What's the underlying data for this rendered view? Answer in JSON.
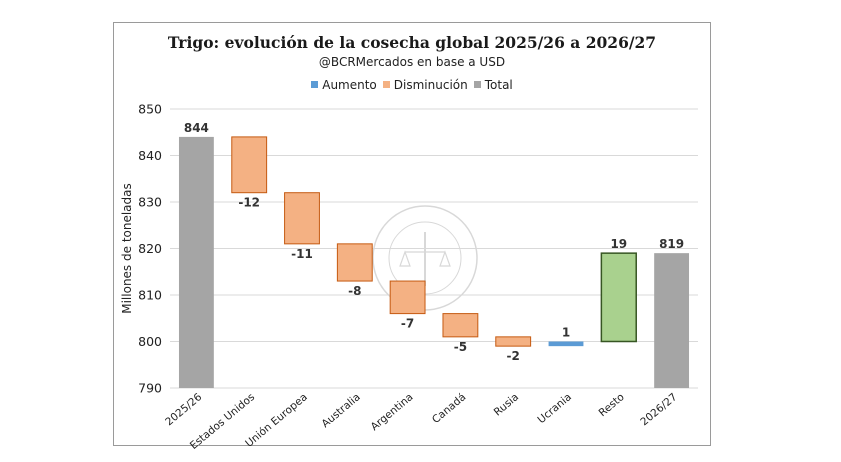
{
  "chart_data": {
    "type": "bar",
    "subtype": "waterfall",
    "title": "Trigo: evolución de la cosecha global 2025/26 a 2026/27",
    "subtitle": "@BCRMercados en base a USD",
    "ylabel": "Millones de toneladas",
    "ylim": [
      790,
      850
    ],
    "yticks": [
      790,
      800,
      810,
      820,
      830,
      840,
      850
    ],
    "legend": {
      "position": "top",
      "entries": [
        {
          "name": "Aumento",
          "color": "#5b9bd5"
        },
        {
          "name": "Disminución",
          "color": "#f4b183"
        },
        {
          "name": "Total",
          "color": "#a5a5a5"
        }
      ]
    },
    "categories": [
      "2025/26",
      "Estados Unidos",
      "Unión Europea",
      "Australia",
      "Argentina",
      "Canadá",
      "Rusia",
      "Ucrania",
      "Resto",
      "2026/27"
    ],
    "bars": [
      {
        "category": "2025/26",
        "kind": "total",
        "start": 790,
        "end": 844,
        "label": "844"
      },
      {
        "category": "Estados Unidos",
        "kind": "decrease",
        "start": 844,
        "end": 832,
        "label": "-12"
      },
      {
        "category": "Unión Europea",
        "kind": "decrease",
        "start": 832,
        "end": 821,
        "label": "-11"
      },
      {
        "category": "Australia",
        "kind": "decrease",
        "start": 821,
        "end": 813,
        "label": "-8"
      },
      {
        "category": "Argentina",
        "kind": "decrease",
        "start": 813,
        "end": 806,
        "label": "-7"
      },
      {
        "category": "Canadá",
        "kind": "decrease",
        "start": 806,
        "end": 801,
        "label": "-5"
      },
      {
        "category": "Rusia",
        "kind": "decrease",
        "start": 801,
        "end": 799,
        "label": "-2"
      },
      {
        "category": "Ucrania",
        "kind": "increase",
        "start": 799,
        "end": 800,
        "label": "1"
      },
      {
        "category": "Resto",
        "kind": "increase",
        "start": 800,
        "end": 819,
        "label": "19",
        "color": "#a9d18e",
        "border": "#375623"
      },
      {
        "category": "2026/27",
        "kind": "total",
        "start": 790,
        "end": 819,
        "label": "819"
      }
    ],
    "colors": {
      "increase": "#5b9bd5",
      "decrease": "#f4b183",
      "decrease_border": "#c55a11",
      "total": "#a5a5a5",
      "grid": "#d9d9d9"
    },
    "grid": true,
    "watermark": "BOLSA DE COMERCIO DE ROSARIO"
  }
}
